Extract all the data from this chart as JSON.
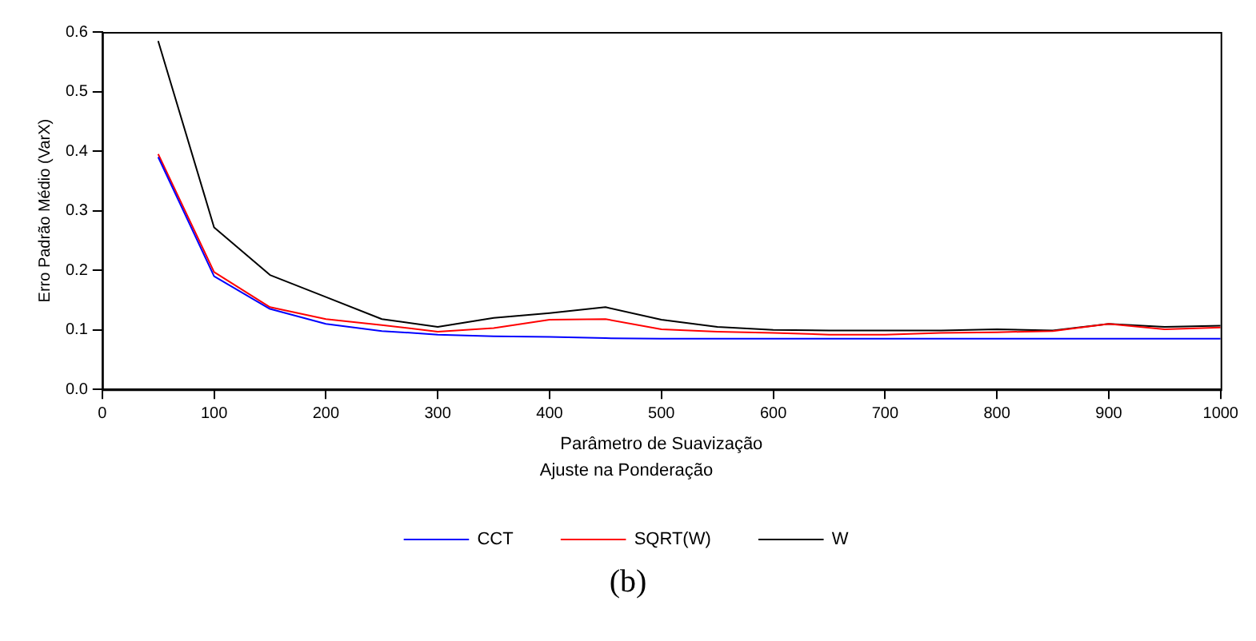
{
  "chart_data": {
    "type": "line",
    "xlabel": "Parâmetro de Suavização",
    "ylabel": "Erro Padrão Médio (VarX)",
    "legend_title": "Ajuste na Ponderação",
    "x": [
      50,
      100,
      150,
      200,
      250,
      300,
      350,
      400,
      450,
      500,
      550,
      600,
      650,
      700,
      750,
      800,
      850,
      900,
      950,
      1000
    ],
    "series": [
      {
        "name": "CCT",
        "color": "#0000ff",
        "values": [
          0.39,
          0.19,
          0.135,
          0.11,
          0.098,
          0.092,
          0.089,
          0.088,
          0.086,
          0.085,
          0.085,
          0.085,
          0.085,
          0.085,
          0.085,
          0.085,
          0.085,
          0.085,
          0.085,
          0.085
        ]
      },
      {
        "name": "SQRT(W)",
        "color": "#ff0000",
        "values": [
          0.395,
          0.197,
          0.138,
          0.118,
          0.108,
          0.097,
          0.103,
          0.117,
          0.118,
          0.101,
          0.097,
          0.095,
          0.092,
          0.092,
          0.095,
          0.096,
          0.098,
          0.11,
          0.101,
          0.104
        ]
      },
      {
        "name": "W",
        "color": "#000000",
        "values": [
          0.585,
          0.272,
          0.192,
          0.155,
          0.118,
          0.105,
          0.12,
          0.128,
          0.138,
          0.117,
          0.105,
          0.1,
          0.099,
          0.099,
          0.099,
          0.101,
          0.099,
          0.11,
          0.105,
          0.107
        ]
      }
    ],
    "xlim": [
      0,
      1000
    ],
    "xticks": [
      0,
      100,
      200,
      300,
      400,
      500,
      600,
      700,
      800,
      900,
      1000
    ],
    "ylim": [
      0,
      0.6
    ],
    "yticks": [
      {
        "value": 0,
        "label": "0.0"
      },
      {
        "value": 0.1,
        "label": "0.1"
      },
      {
        "value": 0.2,
        "label": "0.2"
      },
      {
        "value": 0.3,
        "label": "0.3"
      },
      {
        "value": 0.4,
        "label": "0.4"
      },
      {
        "value": 0.5,
        "label": "0.5"
      },
      {
        "value": 0.6,
        "label": "0.6"
      }
    ],
    "grid": false,
    "legend": "bottom",
    "marker": "none",
    "line_style": "solid",
    "annotations": [
      "(b)"
    ]
  }
}
